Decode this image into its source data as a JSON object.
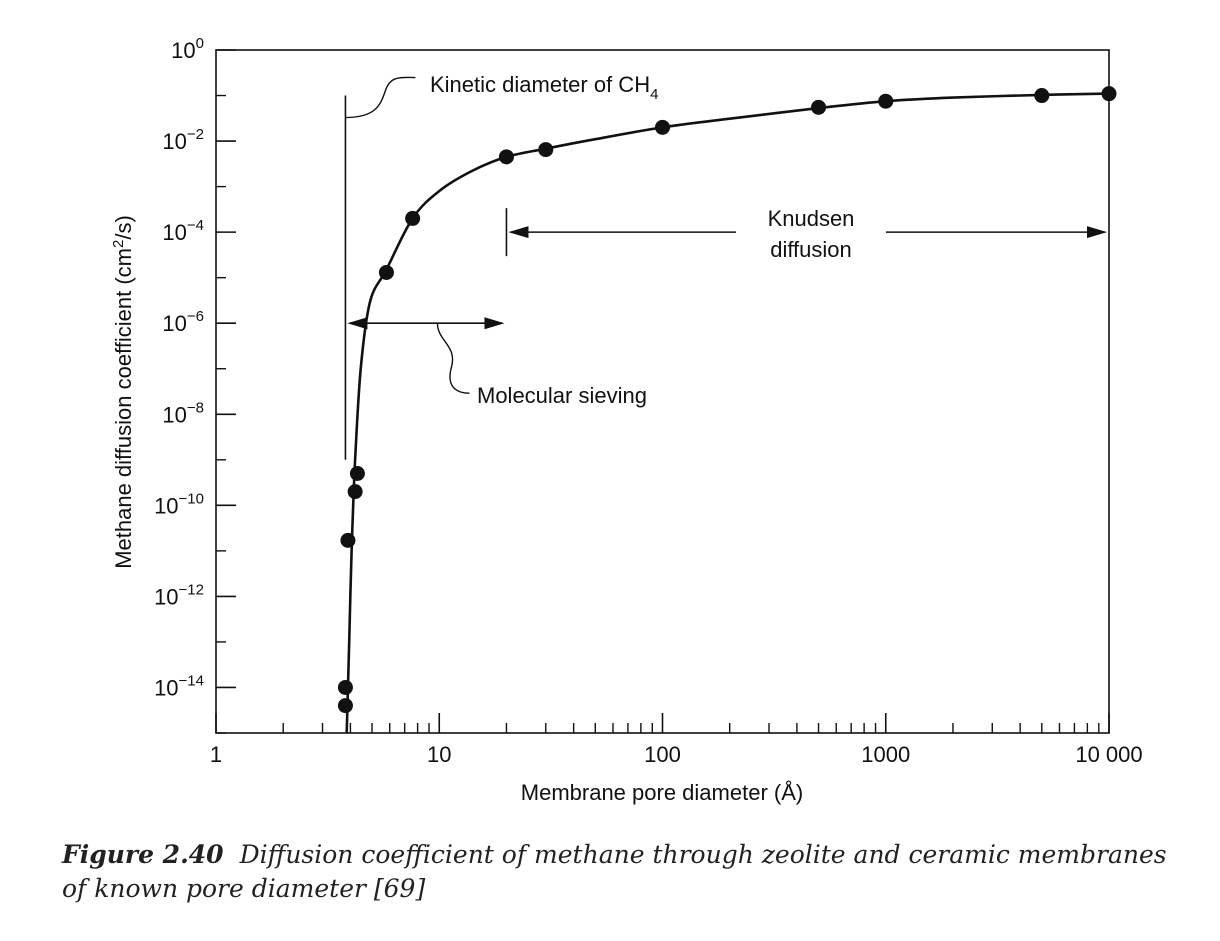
{
  "chart_data": {
    "type": "scatter",
    "x_scale": "log",
    "y_scale": "log",
    "xlabel": "Membrane pore diameter (Å)",
    "ylabel_pre": "Methane diffusion coefficient (cm",
    "ylabel_sup": "2",
    "ylabel_post": "/s)",
    "xlim": [
      1,
      10000
    ],
    "ylim": [
      1e-15,
      1
    ],
    "x_ticks": [
      {
        "value": 1,
        "label": "1"
      },
      {
        "value": 10,
        "label": "10"
      },
      {
        "value": 100,
        "label": "100"
      },
      {
        "value": 1000,
        "label": "1000"
      },
      {
        "value": 10000,
        "label": "10 000"
      }
    ],
    "y_ticks": [
      {
        "value": 1,
        "base": "10",
        "exp": "0"
      },
      {
        "value": 0.01,
        "base": "10",
        "exp": "−2"
      },
      {
        "value": 0.0001,
        "base": "10",
        "exp": "−4"
      },
      {
        "value": 1e-06,
        "base": "10",
        "exp": "−6"
      },
      {
        "value": 1e-08,
        "base": "10",
        "exp": "−8"
      },
      {
        "value": 1e-10,
        "base": "10",
        "exp": "−10"
      },
      {
        "value": 1e-12,
        "base": "10",
        "exp": "−12"
      },
      {
        "value": 1e-14,
        "base": "10",
        "exp": "−14"
      }
    ],
    "points": [
      {
        "x": 3.8,
        "y": 4e-15
      },
      {
        "x": 3.8,
        "y": 1e-14
      },
      {
        "x": 3.9,
        "y": 1.7e-11
      },
      {
        "x": 4.2,
        "y": 2e-10
      },
      {
        "x": 4.3,
        "y": 5e-10
      },
      {
        "x": 5.8,
        "y": 1.3e-05
      },
      {
        "x": 7.6,
        "y": 0.0002
      },
      {
        "x": 20,
        "y": 0.0045
      },
      {
        "x": 30,
        "y": 0.0065
      },
      {
        "x": 100,
        "y": 0.02
      },
      {
        "x": 500,
        "y": 0.055
      },
      {
        "x": 1000,
        "y": 0.075
      },
      {
        "x": 5000,
        "y": 0.1
      },
      {
        "x": 10000,
        "y": 0.11
      }
    ],
    "curve": [
      {
        "x": 3.85,
        "y": 1e-15
      },
      {
        "x": 3.95,
        "y": 1e-13
      },
      {
        "x": 4.05,
        "y": 1e-11
      },
      {
        "x": 4.2,
        "y": 1e-09
      },
      {
        "x": 4.45,
        "y": 1e-07
      },
      {
        "x": 4.9,
        "y": 3e-06
      },
      {
        "x": 5.8,
        "y": 1.5e-05
      },
      {
        "x": 7.6,
        "y": 0.0002
      },
      {
        "x": 10,
        "y": 0.0008
      },
      {
        "x": 14,
        "y": 0.0022
      },
      {
        "x": 20,
        "y": 0.0045
      },
      {
        "x": 30,
        "y": 0.0068
      },
      {
        "x": 50,
        "y": 0.011
      },
      {
        "x": 100,
        "y": 0.02
      },
      {
        "x": 200,
        "y": 0.031
      },
      {
        "x": 500,
        "y": 0.053
      },
      {
        "x": 1000,
        "y": 0.075
      },
      {
        "x": 2000,
        "y": 0.09
      },
      {
        "x": 5000,
        "y": 0.103
      },
      {
        "x": 10000,
        "y": 0.11
      }
    ],
    "annotations": {
      "kinetic_pre": "Kinetic diameter of CH",
      "kinetic_sub": "4",
      "kinetic_x": 3.8,
      "kinetic_line_top_y": 0.1,
      "kinetic_line_bottom_y": 1e-09,
      "knudsen_line1": "Knudsen",
      "knudsen_line2": "diffusion",
      "knudsen_x_start": 20,
      "knudsen_x_end": 10000,
      "knudsen_y": 0.0001,
      "sieving_text": "Molecular sieving",
      "sieving_x_start": 3.8,
      "sieving_x_end": 20,
      "sieving_y": 1e-06
    }
  },
  "caption": {
    "label": "Figure 2.40",
    "text": "Diffusion coefficient of methane through zeolite and ceramic membranes of known pore diameter [69]"
  }
}
